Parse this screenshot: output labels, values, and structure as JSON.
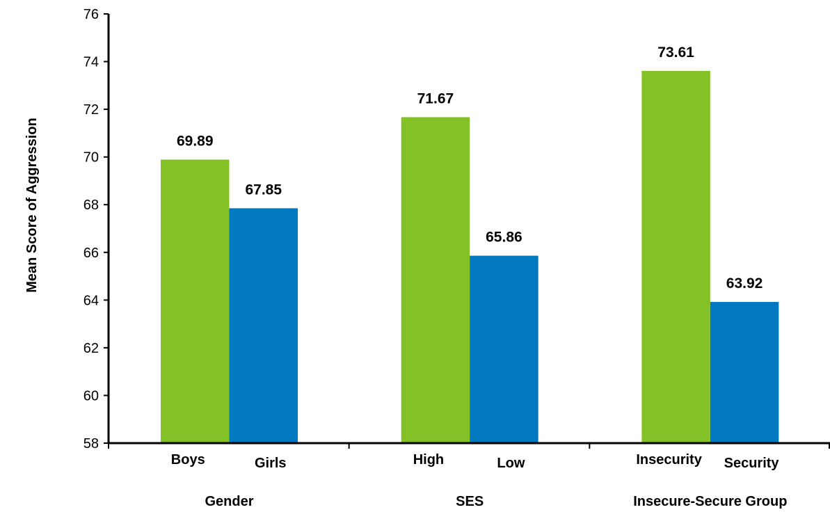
{
  "chart_data": {
    "type": "bar",
    "title": "",
    "xlabel": "",
    "ylabel": "Mean Score of Aggression",
    "ylim": [
      58,
      76
    ],
    "ytick_step": 2,
    "grid": false,
    "colors": {
      "first": "#84C126",
      "second": "#0079C1"
    },
    "groups": [
      {
        "label": "Gender",
        "bars": [
          {
            "label": "Boys",
            "value": 69.89,
            "value_label": "69.89"
          },
          {
            "label": "Girls",
            "value": 67.85,
            "value_label": "67.85"
          }
        ]
      },
      {
        "label": "SES",
        "bars": [
          {
            "label": "High",
            "value": 71.67,
            "value_label": "71.67"
          },
          {
            "label": "Low",
            "value": 65.86,
            "value_label": "65.86"
          }
        ]
      },
      {
        "label": "Insecure-Secure Group",
        "bars": [
          {
            "label": "Insecurity",
            "value": 73.61,
            "value_label": "73.61"
          },
          {
            "label": "Security",
            "value": 63.92,
            "value_label": "63.92"
          }
        ]
      }
    ]
  }
}
